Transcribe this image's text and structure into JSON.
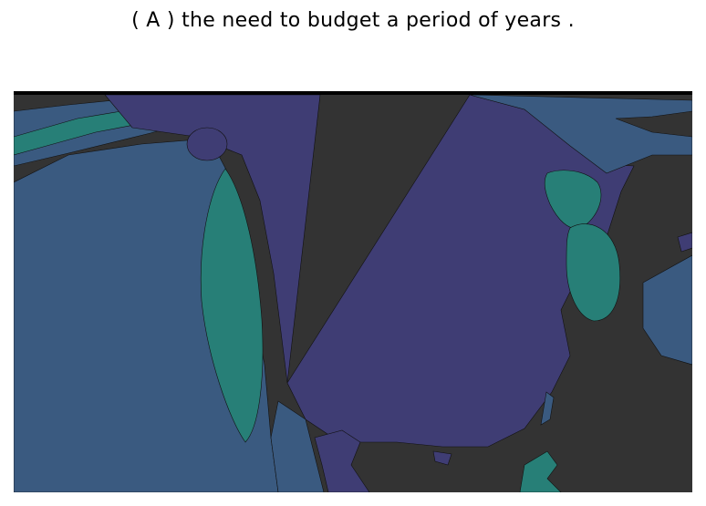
{
  "title": "( A ) the need to budget a period of years .",
  "map": {
    "colors": {
      "background": "#333333",
      "frame_top": "#000000",
      "blue": "#3a5a80",
      "purple": "#3f3d74",
      "teal": "#277f77",
      "outline": "#111111"
    }
  }
}
